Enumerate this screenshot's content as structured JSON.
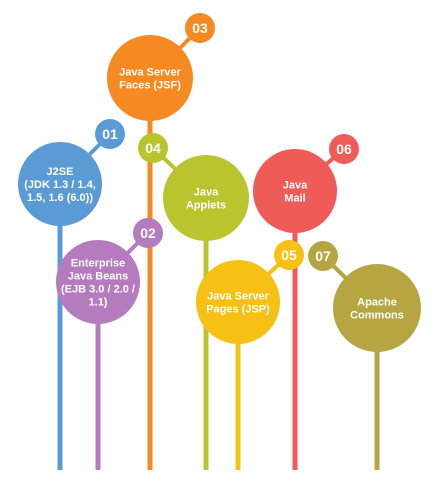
{
  "items": [
    {
      "number": "01",
      "lines": [
        "J2SE",
        "(JDK 1.3 / 1.4,",
        "1.5, 1.6 (6.0))"
      ],
      "color": "#5b9bd5"
    },
    {
      "number": "02",
      "lines": [
        "Enterprise",
        "Java Beans",
        "(EJB 3.0 / 2.0 /",
        "1.1)"
      ],
      "color": "#b57bbf"
    },
    {
      "number": "03",
      "lines": [
        "Java Server",
        "Faces (JSF)"
      ],
      "color": "#f58a23"
    },
    {
      "number": "04",
      "lines": [
        "Java",
        "Applets"
      ],
      "color": "#b9c42f"
    },
    {
      "number": "05",
      "lines": [
        "Java Server",
        "Pages (JSP)"
      ],
      "color": "#f6c114"
    },
    {
      "number": "06",
      "lines": [
        "Java",
        "Mail"
      ],
      "color": "#ef5b57"
    },
    {
      "number": "07",
      "lines": [
        "Apache",
        "Commons"
      ],
      "color": "#b5a642"
    }
  ]
}
